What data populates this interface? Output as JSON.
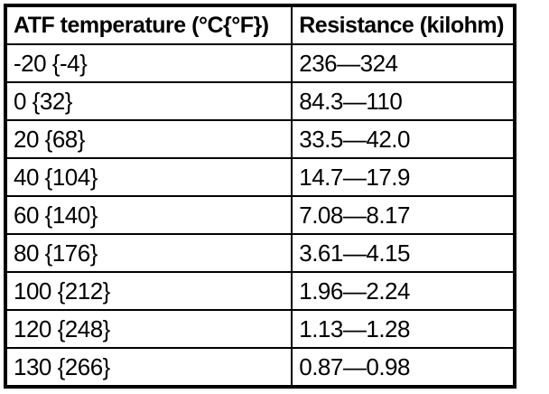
{
  "table": {
    "headers": {
      "temperature": "ATF temperature (°C{°F})",
      "resistance": "Resistance (kilohm)"
    },
    "rows": [
      {
        "temperature": "-20 {-4}",
        "resistance": "236—324"
      },
      {
        "temperature": "0 {32}",
        "resistance": "84.3—110"
      },
      {
        "temperature": "20 {68}",
        "resistance": "33.5—42.0"
      },
      {
        "temperature": "40 {104}",
        "resistance": "14.7—17.9"
      },
      {
        "temperature": "60 {140}",
        "resistance": "7.08—8.17"
      },
      {
        "temperature": "80 {176}",
        "resistance": "3.61—4.15"
      },
      {
        "temperature": "100 {212}",
        "resistance": "1.96—2.24"
      },
      {
        "temperature": "120 {248}",
        "resistance": "1.13—1.28"
      },
      {
        "temperature": "130 {266}",
        "resistance": "0.87—0.98"
      }
    ],
    "colors": {
      "border": "#000000",
      "text": "#000000",
      "background": "#ffffff"
    }
  }
}
